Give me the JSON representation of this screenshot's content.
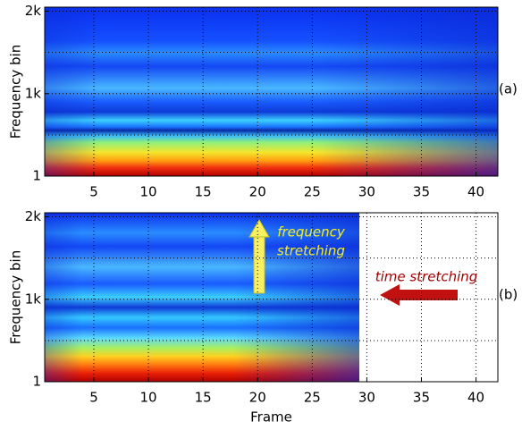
{
  "chart_data": [
    {
      "type": "heatmap",
      "ylabel": "Frequency bin",
      "panel_label": "(a)",
      "xlim": [
        0.5,
        42
      ],
      "xticks": [
        5,
        10,
        15,
        20,
        25,
        30,
        35,
        40
      ],
      "ylim": [
        1,
        2049
      ],
      "yticks": [
        {
          "value": 1,
          "label": "1"
        },
        {
          "value": 1000,
          "label": "1k"
        },
        {
          "value": 2000,
          "label": "2k"
        }
      ],
      "minor_yticks": [
        500,
        1500
      ],
      "grid": true
    },
    {
      "type": "heatmap",
      "ylabel": "Frequency bin",
      "xlabel": "Frame",
      "panel_label": "(b)",
      "xlim": [
        0.5,
        42
      ],
      "xticks": [
        5,
        10,
        15,
        20,
        25,
        30,
        35,
        40
      ],
      "ylim": [
        1,
        2049
      ],
      "yticks": [
        {
          "value": 1,
          "label": "1"
        },
        {
          "value": 1000,
          "label": "1k"
        },
        {
          "value": 2000,
          "label": "2k"
        }
      ],
      "minor_yticks": [
        500,
        1500
      ],
      "grid": true,
      "annotations": [
        {
          "lines": [
            "frequency",
            "stretching"
          ],
          "color": "#f5f020"
        },
        {
          "lines": [
            "time stretching"
          ],
          "color": "#a00000"
        }
      ]
    }
  ]
}
